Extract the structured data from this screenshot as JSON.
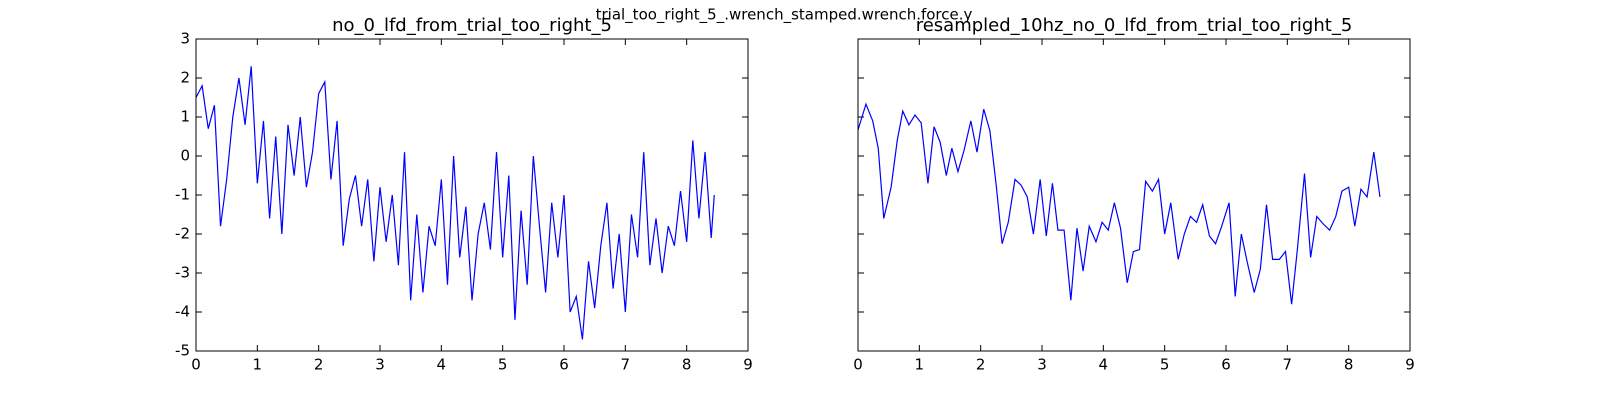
{
  "title": "trial_too_right_5_.wrench_stamped.wrench.force.y",
  "chart_data": [
    {
      "type": "line",
      "title": "no_0_lfd_from_trial_too_right_5",
      "x": [
        0,
        0.1,
        0.2,
        0.3,
        0.4,
        0.5,
        0.6,
        0.7,
        0.8,
        0.9,
        1.0,
        1.1,
        1.2,
        1.3,
        1.4,
        1.5,
        1.6,
        1.7,
        1.8,
        1.9,
        2.0,
        2.1,
        2.2,
        2.3,
        2.4,
        2.5,
        2.6,
        2.7,
        2.8,
        2.9,
        3.0,
        3.1,
        3.2,
        3.3,
        3.4,
        3.5,
        3.6,
        3.7,
        3.8,
        3.9,
        4.0,
        4.1,
        4.2,
        4.3,
        4.4,
        4.5,
        4.6,
        4.7,
        4.8,
        4.9,
        5.0,
        5.1,
        5.2,
        5.3,
        5.4,
        5.5,
        5.6,
        5.7,
        5.8,
        5.9,
        6.0,
        6.1,
        6.2,
        6.3,
        6.4,
        6.5,
        6.6,
        6.7,
        6.8,
        6.9,
        7.0,
        7.1,
        7.2,
        7.3,
        7.4,
        7.5,
        7.6,
        7.7,
        7.8,
        7.9,
        8.0,
        8.1,
        8.2,
        8.3,
        8.4,
        8.45
      ],
      "series": [
        {
          "color": "#0000ff",
          "values": [
            1.5,
            1.8,
            0.7,
            1.3,
            -1.8,
            -0.6,
            1.0,
            2.0,
            0.8,
            2.3,
            -0.7,
            0.9,
            -1.6,
            0.5,
            -2.0,
            0.8,
            -0.5,
            1.0,
            -0.8,
            0.1,
            1.6,
            1.9,
            -0.6,
            0.9,
            -2.3,
            -1.1,
            -0.5,
            -1.8,
            -0.6,
            -2.7,
            -0.8,
            -2.2,
            -1.0,
            -2.8,
            0.1,
            -3.7,
            -1.5,
            -3.5,
            -1.8,
            -2.3,
            -0.6,
            -3.3,
            0.0,
            -2.6,
            -1.3,
            -3.7,
            -2.0,
            -1.2,
            -2.4,
            0.1,
            -2.6,
            -0.5,
            -4.2,
            -1.4,
            -3.3,
            0.0,
            -1.8,
            -3.5,
            -1.2,
            -2.6,
            -1.0,
            -4.0,
            -3.6,
            -4.7,
            -2.7,
            -3.9,
            -2.3,
            -1.2,
            -3.4,
            -2.0,
            -4.0,
            -1.5,
            -2.6,
            0.1,
            -2.8,
            -1.6,
            -3.0,
            -1.8,
            -2.3,
            -0.9,
            -2.2,
            0.4,
            -1.6,
            0.1,
            -2.1,
            -1.0
          ]
        }
      ],
      "xlim": [
        0,
        9
      ],
      "xticks": [
        0,
        1,
        2,
        3,
        4,
        5,
        6,
        7,
        8,
        9
      ],
      "ylim": [
        -5,
        3
      ],
      "yticks": [
        -5,
        -4,
        -3,
        -2,
        -1,
        0,
        1,
        2,
        3
      ],
      "ytick_labels": true
    },
    {
      "type": "line",
      "title": "resampled_10hz_no_0_lfd_from_trial_too_right_5",
      "x": [
        0,
        0.13,
        0.24,
        0.33,
        0.42,
        0.54,
        0.64,
        0.73,
        0.83,
        0.93,
        1.03,
        1.14,
        1.24,
        1.34,
        1.44,
        1.53,
        1.63,
        1.73,
        1.84,
        1.94,
        2.05,
        2.15,
        2.25,
        2.35,
        2.45,
        2.56,
        2.66,
        2.76,
        2.86,
        2.97,
        3.07,
        3.17,
        3.26,
        3.36,
        3.47,
        3.57,
        3.67,
        3.77,
        3.88,
        3.98,
        4.08,
        4.18,
        4.28,
        4.39,
        4.49,
        4.59,
        4.69,
        4.8,
        4.9,
        5.0,
        5.1,
        5.22,
        5.32,
        5.42,
        5.52,
        5.62,
        5.73,
        5.83,
        5.93,
        6.05,
        6.15,
        6.25,
        6.35,
        6.46,
        6.56,
        6.66,
        6.76,
        6.87,
        6.97,
        7.07,
        7.16,
        7.28,
        7.38,
        7.48,
        7.59,
        7.69,
        7.79,
        7.89,
        8.0,
        8.1,
        8.2,
        8.3,
        8.41,
        8.51
      ],
      "series": [
        {
          "color": "#0000ff",
          "values": [
            0.67,
            1.33,
            0.9,
            0.2,
            -1.6,
            -0.8,
            0.4,
            1.15,
            0.8,
            1.05,
            0.85,
            -0.7,
            0.75,
            0.35,
            -0.5,
            0.2,
            -0.4,
            0.15,
            0.9,
            0.1,
            1.2,
            0.65,
            -0.7,
            -2.25,
            -1.7,
            -0.6,
            -0.75,
            -1.05,
            -2.0,
            -0.6,
            -2.05,
            -0.7,
            -1.9,
            -1.9,
            -3.7,
            -1.85,
            -2.95,
            -1.8,
            -2.2,
            -1.7,
            -1.9,
            -1.2,
            -1.85,
            -3.25,
            -2.45,
            -2.4,
            -0.65,
            -0.9,
            -0.6,
            -2.0,
            -1.2,
            -2.65,
            -2.0,
            -1.55,
            -1.7,
            -1.25,
            -2.05,
            -2.25,
            -1.8,
            -1.2,
            -3.6,
            -2.0,
            -2.75,
            -3.5,
            -2.9,
            -1.25,
            -2.65,
            -2.65,
            -2.45,
            -3.8,
            -2.45,
            -0.45,
            -2.6,
            -1.55,
            -1.75,
            -1.9,
            -1.55,
            -0.9,
            -0.8,
            -1.8,
            -0.85,
            -1.05,
            0.1,
            -1.05
          ]
        }
      ],
      "xlim": [
        0,
        9
      ],
      "xticks": [
        0,
        1,
        2,
        3,
        4,
        5,
        6,
        7,
        8,
        9
      ],
      "ylim": [
        -5,
        3
      ],
      "yticks": [
        -5,
        -4,
        -3,
        -2,
        -1,
        0,
        1,
        2,
        3
      ],
      "ytick_labels": false
    }
  ]
}
